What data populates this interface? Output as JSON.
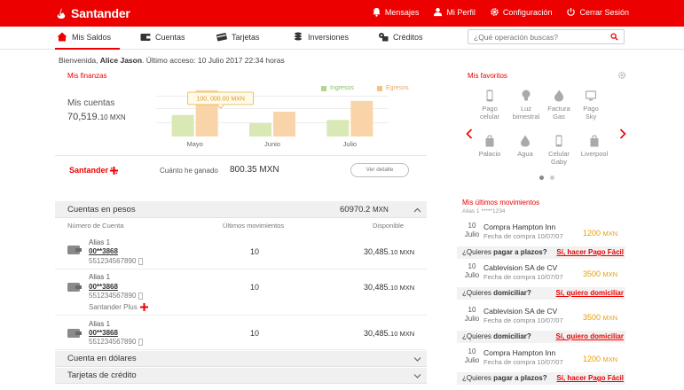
{
  "header": {
    "brand": "Santander",
    "links": [
      {
        "label": "Mensajes",
        "icon": "bell-icon"
      },
      {
        "label": "Mi Perfil",
        "icon": "user-icon"
      },
      {
        "label": "Configuración",
        "icon": "gear-icon"
      },
      {
        "label": "Cerrar Sesión",
        "icon": "power-icon"
      }
    ]
  },
  "nav": {
    "items": [
      {
        "label": "Mis Saldos",
        "icon": "home-icon"
      },
      {
        "label": "Cuentas",
        "icon": "wallet-icon"
      },
      {
        "label": "Tarjetas",
        "icon": "card-icon"
      },
      {
        "label": "Inversiones",
        "icon": "coins-icon"
      },
      {
        "label": "Créditos",
        "icon": "credit-icon"
      }
    ],
    "search_placeholder": "¿Qué operación buscas?"
  },
  "welcome": {
    "prefix": "Bienvenida, ",
    "name": "Alice Jason",
    "suffix": ". Último acceso: 10 Julio 2017 22:34 horas"
  },
  "finanzas": {
    "title": "Mis finanzas",
    "mis_cuentas_label": "Mis cuentas",
    "mis_cuentas_amount": "70,519.",
    "mis_cuentas_cents": "10 MXN",
    "legend_ingresos": "Ingresos",
    "legend_egresos": "Egresos",
    "tooltip": "100, 000.00 MXN",
    "bank": "Santander",
    "ganado_label": "Cuánto he ganado",
    "ganado_amount": "800.35 MXN",
    "ver_detalle": "Ver detalle"
  },
  "chart_data": {
    "type": "bar",
    "categories": [
      "Mayo",
      "Junio",
      "Julio"
    ],
    "series": [
      {
        "name": "Ingresos",
        "values": [
          26,
          16,
          20
        ],
        "color": "#d9e8b4"
      },
      {
        "name": "Egresos",
        "values": [
          56,
          30,
          43
        ],
        "color": "#f9d4a8"
      }
    ],
    "ylim": [
      0,
      60
    ],
    "highlight": {
      "category": "Mayo",
      "label": "100, 000.00 MXN"
    }
  },
  "cuentas_pesos": {
    "title": "Cuentas en pesos",
    "total": "60970.2",
    "total_unit": "MXN",
    "col_numero": "Número de Cuenta",
    "col_movs": "Últimos movimientos",
    "col_disp": "Disponible",
    "rows": [
      {
        "alias": "Alias 1",
        "number": "00**3868",
        "phone": "551234567890",
        "movs": "10",
        "disp": "30,485.",
        "disp_cents": "10 MXN",
        "plus": ""
      },
      {
        "alias": "Alias 1",
        "number": "00**3868",
        "phone": "551234567890",
        "movs": "10",
        "disp": "30,485.",
        "disp_cents": "10 MXN",
        "plus": "Santander Plus"
      },
      {
        "alias": "Alias 1",
        "number": "00**3868",
        "phone": "551234567890",
        "movs": "10",
        "disp": "30,485.",
        "disp_cents": "10 MXN",
        "plus": ""
      }
    ]
  },
  "cuenta_dolares": {
    "title": "Cuenta en dólares"
  },
  "tarjetas_credito": {
    "title": "Tarjetas de crédito"
  },
  "favoritos": {
    "title": "Mis favoritos",
    "items": [
      {
        "line1": "Pago",
        "line2": "celular",
        "icon": "phone-icon"
      },
      {
        "line1": "Luz",
        "line2": "bimestral",
        "icon": "bulb-icon"
      },
      {
        "line1": "Factura",
        "line2": "Gas",
        "icon": "flame-icon"
      },
      {
        "line1": "Pago",
        "line2": "Sky",
        "icon": "tv-icon"
      },
      {
        "line1": "Palacio",
        "line2": "",
        "icon": "bag-icon"
      },
      {
        "line1": "Agua",
        "line2": "",
        "icon": "drop-icon"
      },
      {
        "line1": "Celular",
        "line2": "Gaby",
        "icon": "phone-icon"
      },
      {
        "line1": "Liverpool",
        "line2": "",
        "icon": "bag-icon"
      }
    ]
  },
  "movimientos": {
    "title": "Mis últimos movimientos",
    "subtitle": "Alias 1 *****1234",
    "items": [
      {
        "day": "10",
        "month": "Julio",
        "name": "Compra Hampton Inn",
        "date": "Fecha de compra 10/07/07",
        "amount": "1200",
        "unit": "MXN",
        "question_pre": "¿Quieres ",
        "question_bold": "pagar a plazos?",
        "action": "Sí, hacer Pago Fácil"
      },
      {
        "day": "10",
        "month": "Julio",
        "name": "Cablevision SA de CV",
        "date": "Fecha de compra 10/07/07",
        "amount": "3500",
        "unit": "MXN",
        "question_pre": "¿Quieres ",
        "question_bold": "domiciliar?",
        "action": "Sí, quiero domiciliar"
      },
      {
        "day": "10",
        "month": "Julio",
        "name": "Cablevision SA de CV",
        "date": "Fecha de compra 10/07/07",
        "amount": "3500",
        "unit": "MXN",
        "question_pre": "¿Quieres ",
        "question_bold": "domiciliar?",
        "action": "Sí, quiero domiciliar"
      },
      {
        "day": "10",
        "month": "Julio",
        "name": "Compra Hampton Inn",
        "date": "Fecha de compra 10/07/07",
        "amount": "1200",
        "unit": "MXN",
        "question_pre": "¿Quieres ",
        "question_bold": "pagar a plazos?",
        "action": "Sí, hacer Pago Fácil"
      }
    ]
  }
}
